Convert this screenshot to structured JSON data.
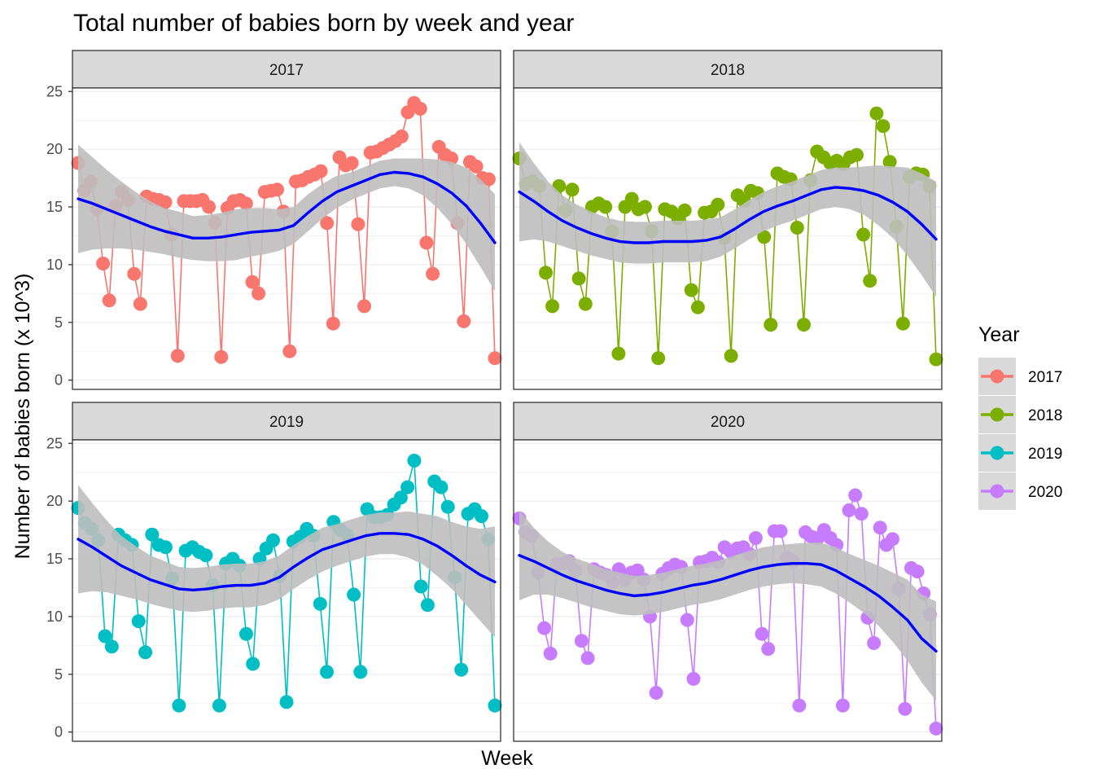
{
  "title": "Total number of babies born by week and year",
  "chart_data": {
    "type": "line",
    "xlabel": "Week",
    "ylabel": "Number of babies born (x 10^3)",
    "ylim": [
      -0.8,
      25.3
    ],
    "yticks": [
      0,
      5,
      10,
      15,
      20,
      25
    ],
    "x_tick_labels_shown": false,
    "grid": true,
    "legend": {
      "title": "Year",
      "placement": "right"
    },
    "smooth_color": "#0000ff",
    "band_color": "#bebebe",
    "panels": [
      {
        "name": "2017",
        "color": "#F8766D",
        "values": [
          18.8,
          16.4,
          17.2,
          14.8,
          10.1,
          6.9,
          15.1,
          16.3,
          15.6,
          9.2,
          6.6,
          15.9,
          15.7,
          15.6,
          15.4,
          12.6,
          2.1,
          15.5,
          15.5,
          15.5,
          15.6,
          15.0,
          13.6,
          2.0,
          14.9,
          15.5,
          15.6,
          15.3,
          8.5,
          7.5,
          16.3,
          16.4,
          16.5,
          14.6,
          2.5,
          17.2,
          17.3,
          17.6,
          17.8,
          18.1,
          13.6,
          4.9,
          19.3,
          18.6,
          18.8,
          13.5,
          6.4,
          19.7,
          19.8,
          20.1,
          20.4,
          20.7,
          21.1,
          23.2,
          24.0,
          23.5,
          11.9,
          9.2,
          20.2,
          19.5,
          19.2,
          13.6,
          5.1,
          18.9,
          18.5,
          17.5,
          17.4,
          1.9
        ],
        "smooth": [
          15.7,
          15.3,
          14.8,
          14.3,
          13.8,
          13.3,
          12.9,
          12.6,
          12.3,
          12.3,
          12.4,
          12.6,
          12.8,
          12.9,
          13.0,
          13.4,
          14.5,
          15.5,
          16.3,
          16.8,
          17.3,
          17.8,
          18.0,
          17.9,
          17.6,
          17.0,
          16.2,
          15.1,
          13.6,
          11.9
        ],
        "band_lower": [
          11.0,
          11.3,
          11.4,
          11.4,
          11.3,
          11.1,
          10.9,
          10.6,
          10.4,
          10.3,
          10.3,
          10.4,
          10.7,
          10.9,
          11.2,
          11.8,
          12.9,
          14.0,
          14.9,
          15.6,
          16.1,
          16.6,
          16.8,
          16.6,
          16.0,
          14.9,
          13.5,
          11.8,
          9.8,
          7.7
        ],
        "band_upper": [
          20.4,
          19.3,
          18.2,
          17.2,
          16.3,
          15.5,
          14.9,
          14.6,
          14.2,
          14.3,
          14.5,
          14.8,
          14.9,
          14.9,
          14.8,
          15.0,
          16.1,
          17.0,
          17.7,
          18.0,
          18.5,
          19.0,
          19.2,
          19.2,
          19.2,
          19.1,
          18.9,
          18.4,
          17.4,
          16.1
        ]
      },
      {
        "name": "2018",
        "color": "#7CAE00",
        "values": [
          19.2,
          17.0,
          17.2,
          16.8,
          9.3,
          6.4,
          16.8,
          14.7,
          16.5,
          8.8,
          6.6,
          15.0,
          15.3,
          15.0,
          12.9,
          2.3,
          15.0,
          15.7,
          14.8,
          15.0,
          12.9,
          1.9,
          14.8,
          14.6,
          14.0,
          14.7,
          7.8,
          6.3,
          14.5,
          14.6,
          15.2,
          12.3,
          2.1,
          16.0,
          15.5,
          16.4,
          16.2,
          12.4,
          4.8,
          17.9,
          17.6,
          17.4,
          13.2,
          4.8,
          17.3,
          19.8,
          19.3,
          18.8,
          19.0,
          18.7,
          19.3,
          19.5,
          12.6,
          8.6,
          23.1,
          22.0,
          18.9,
          13.3,
          4.9,
          17.6,
          17.9,
          17.8,
          16.8,
          1.8
        ],
        "smooth": [
          16.3,
          15.5,
          14.6,
          13.8,
          13.2,
          12.7,
          12.3,
          12.0,
          11.9,
          11.9,
          12.0,
          12.0,
          12.0,
          12.1,
          12.4,
          13.1,
          13.9,
          14.6,
          15.1,
          15.5,
          16.0,
          16.5,
          16.7,
          16.6,
          16.4,
          16.0,
          15.4,
          14.6,
          13.5,
          12.2
        ],
        "band_lower": [
          12.0,
          12.2,
          12.0,
          11.6,
          11.2,
          10.8,
          10.5,
          10.2,
          10.1,
          10.1,
          10.2,
          10.2,
          10.2,
          10.3,
          10.7,
          11.4,
          12.2,
          12.9,
          13.4,
          13.8,
          14.3,
          14.8,
          15.0,
          14.8,
          14.3,
          13.4,
          12.3,
          10.8,
          9.1,
          7.2
        ],
        "band_upper": [
          20.6,
          18.8,
          17.2,
          16.0,
          15.2,
          14.6,
          14.1,
          13.8,
          13.7,
          13.7,
          13.8,
          13.8,
          13.8,
          13.9,
          14.1,
          14.8,
          15.6,
          16.3,
          16.8,
          17.2,
          17.7,
          18.2,
          18.4,
          18.4,
          18.5,
          18.6,
          18.5,
          18.4,
          17.9,
          17.2
        ]
      },
      {
        "name": "2019",
        "color": "#00BFC4",
        "values": [
          19.4,
          18.1,
          17.6,
          16.6,
          8.3,
          7.4,
          17.1,
          16.6,
          16.2,
          9.6,
          6.9,
          17.1,
          16.2,
          16.0,
          13.3,
          2.3,
          15.7,
          16.0,
          15.6,
          15.3,
          12.7,
          2.3,
          14.6,
          15.0,
          14.4,
          8.5,
          5.9,
          15.0,
          15.9,
          16.6,
          13.5,
          2.6,
          16.5,
          16.9,
          17.6,
          17.0,
          11.1,
          5.2,
          18.2,
          17.5,
          17.1,
          11.9,
          5.2,
          19.3,
          18.6,
          18.6,
          18.8,
          19.7,
          20.3,
          21.2,
          23.5,
          12.6,
          11.0,
          21.7,
          21.2,
          19.5,
          13.4,
          5.4,
          18.9,
          19.3,
          18.7,
          16.7,
          2.3
        ],
        "smooth": [
          16.7,
          16.0,
          15.2,
          14.4,
          13.8,
          13.2,
          12.8,
          12.4,
          12.3,
          12.4,
          12.6,
          12.7,
          12.7,
          12.9,
          13.4,
          14.3,
          15.1,
          15.8,
          16.2,
          16.6,
          17.0,
          17.2,
          17.2,
          17.1,
          16.7,
          16.1,
          15.3,
          14.4,
          13.6,
          13.0
        ],
        "band_lower": [
          12.0,
          12.2,
          12.1,
          11.8,
          11.5,
          11.1,
          10.8,
          10.5,
          10.4,
          10.5,
          10.7,
          10.8,
          10.8,
          11.0,
          11.5,
          12.4,
          13.2,
          13.9,
          14.4,
          14.8,
          15.2,
          15.4,
          15.4,
          15.1,
          14.5,
          13.5,
          12.4,
          11.0,
          9.6,
          8.2
        ],
        "band_upper": [
          21.4,
          19.8,
          18.3,
          17.0,
          16.1,
          15.3,
          14.8,
          14.3,
          14.2,
          14.3,
          14.5,
          14.6,
          14.6,
          14.8,
          15.3,
          16.2,
          17.0,
          17.7,
          18.0,
          18.4,
          18.8,
          19.0,
          19.0,
          19.1,
          18.9,
          18.7,
          18.2,
          17.8,
          17.6,
          17.8
        ]
      },
      {
        "name": "2020",
        "color": "#C77CFF",
        "values": [
          18.5,
          17.3,
          17.0,
          13.8,
          9.0,
          6.8,
          14.5,
          14.6,
          14.8,
          14.0,
          7.9,
          6.4,
          14.1,
          13.8,
          13.6,
          13.0,
          14.1,
          13.2,
          13.8,
          14.0,
          13.2,
          10.0,
          3.4,
          13.7,
          14.2,
          14.5,
          14.3,
          9.7,
          4.6,
          14.7,
          14.8,
          15.1,
          14.7,
          16.0,
          15.6,
          15.9,
          16.0,
          15.4,
          16.8,
          8.5,
          7.2,
          17.4,
          17.4,
          15.1,
          14.8,
          2.3,
          17.3,
          16.9,
          16.8,
          17.5,
          16.8,
          16.2,
          2.3,
          19.2,
          20.5,
          18.9,
          9.9,
          7.7,
          17.7,
          16.2,
          16.7,
          12.4,
          2.0,
          14.2,
          13.9,
          12.0,
          10.2,
          0.3
        ],
        "smooth": [
          15.3,
          14.8,
          14.2,
          13.6,
          13.1,
          12.7,
          12.3,
          12.0,
          11.8,
          11.9,
          12.1,
          12.4,
          12.7,
          12.9,
          13.2,
          13.6,
          14.0,
          14.3,
          14.5,
          14.6,
          14.6,
          14.5,
          14.0,
          13.3,
          12.6,
          11.8,
          10.8,
          9.7,
          8.1,
          7.0
        ],
        "band_lower": [
          11.4,
          11.9,
          11.9,
          11.6,
          11.2,
          10.8,
          10.5,
          10.2,
          10.1,
          10.2,
          10.4,
          10.7,
          11.0,
          11.2,
          11.5,
          11.9,
          12.3,
          12.6,
          12.8,
          12.9,
          12.8,
          12.6,
          12.0,
          11.2,
          10.3,
          9.2,
          7.8,
          6.2,
          4.3,
          2.7
        ],
        "band_upper": [
          19.2,
          17.7,
          16.5,
          15.6,
          15.0,
          14.6,
          14.1,
          13.8,
          13.5,
          13.6,
          13.8,
          14.1,
          14.4,
          14.6,
          14.9,
          15.3,
          15.7,
          16.0,
          16.2,
          16.3,
          16.4,
          16.4,
          16.0,
          15.4,
          14.9,
          14.4,
          13.8,
          13.2,
          11.9,
          11.3
        ]
      }
    ]
  }
}
